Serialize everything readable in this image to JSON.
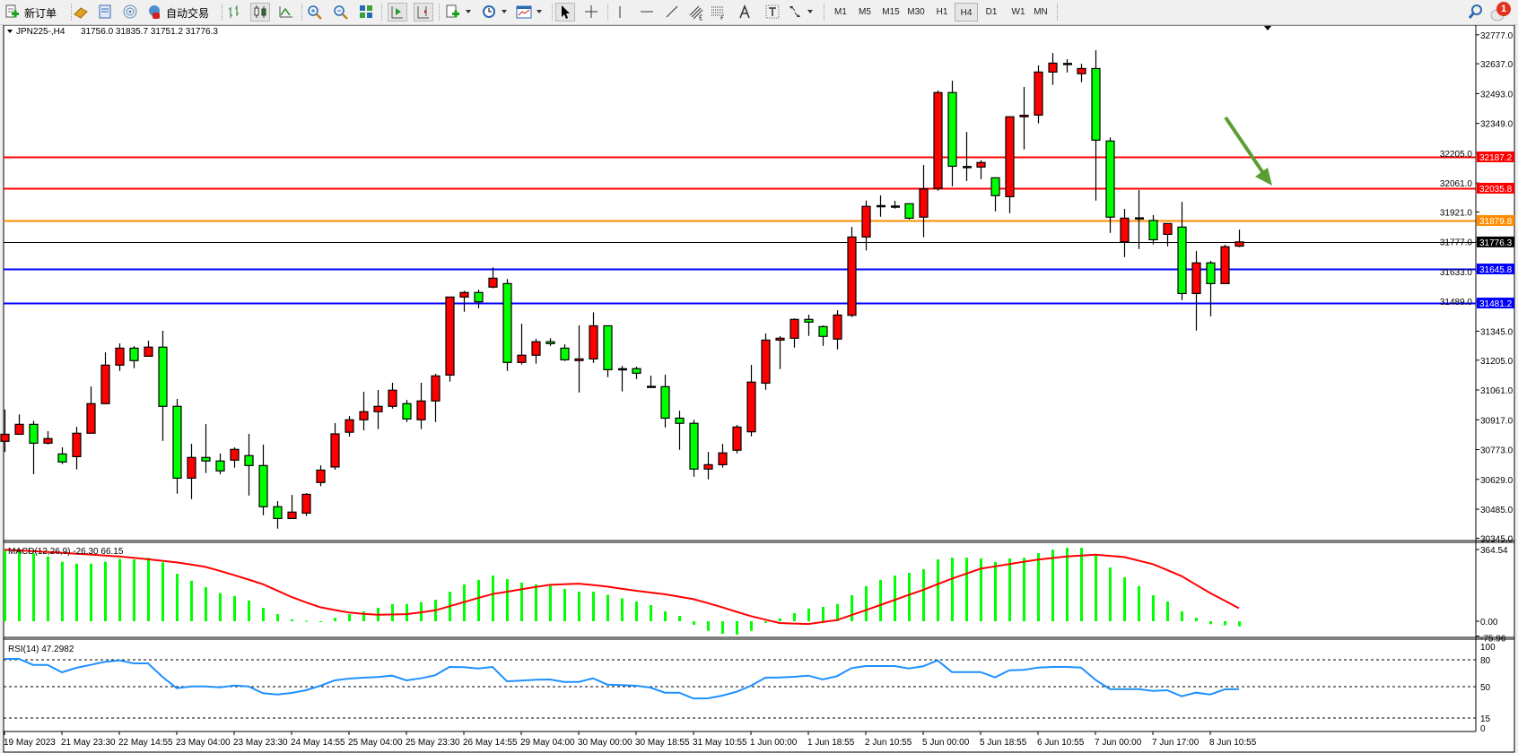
{
  "toolbar": {
    "items": [
      {
        "id": "new-order",
        "icon": "new-order-icon",
        "label": "新订单"
      },
      {
        "id": "market-watch",
        "icon": "gold-bars-icon"
      },
      {
        "id": "terminal",
        "icon": "terminal-icon"
      },
      {
        "id": "signals",
        "icon": "signal-icon"
      },
      {
        "id": "auto-trading",
        "icon": "auto-trading-icon",
        "label": "自动交易"
      },
      {
        "id": "bar-chart",
        "icon": "bar-chart-icon"
      },
      {
        "id": "candlesticks",
        "icon": "candlestick-icon",
        "active": true
      },
      {
        "id": "line-chart",
        "icon": "line-chart-icon"
      },
      {
        "id": "zoom-in",
        "icon": "zoom-in-icon"
      },
      {
        "id": "zoom-out",
        "icon": "zoom-out-icon"
      },
      {
        "id": "tile-windows",
        "icon": "tile-windows-icon"
      },
      {
        "id": "auto-scroll",
        "icon": "auto-scroll-icon",
        "active": true
      },
      {
        "id": "chart-shift",
        "icon": "chart-shift-icon",
        "active": true
      },
      {
        "id": "indicators",
        "icon": "indicators-icon",
        "dropdown": true
      },
      {
        "id": "periods",
        "icon": "clock-icon",
        "dropdown": true
      },
      {
        "id": "templates",
        "icon": "templates-icon",
        "dropdown": true
      },
      {
        "id": "cursor",
        "icon": "cursor-icon",
        "active": true
      },
      {
        "id": "crosshair",
        "icon": "crosshair-icon"
      },
      {
        "id": "vertical-line",
        "icon": "vertical-line-icon"
      },
      {
        "id": "horizontal-line",
        "icon": "horizontal-line-icon"
      },
      {
        "id": "trendline",
        "icon": "trendline-icon"
      },
      {
        "id": "fibo-channel",
        "icon": "fibo-channel-icon"
      },
      {
        "id": "fibonacci",
        "icon": "fibonacci-icon"
      },
      {
        "id": "text",
        "icon": "text-icon"
      },
      {
        "id": "text-label",
        "icon": "text-label-icon"
      },
      {
        "id": "arrows",
        "icon": "arrows-icon",
        "dropdown": true
      }
    ],
    "timeframes": [
      {
        "label": "M1"
      },
      {
        "label": "M5"
      },
      {
        "label": "M15"
      },
      {
        "label": "M30"
      },
      {
        "label": "H1"
      },
      {
        "label": "H4",
        "active": true
      },
      {
        "label": "D1"
      },
      {
        "label": "W1"
      },
      {
        "label": "MN"
      }
    ],
    "search_icon": "search-icon",
    "notifications": {
      "icon": "notification-icon",
      "count": "1"
    }
  },
  "chart": {
    "symbol": "JPN225-,H4",
    "ohlc": "31756.0 31835.7 31751.2 31776.3"
  },
  "chart_data": {
    "type": "candlestick",
    "symbol": "JPN225-",
    "timeframe": "H4",
    "bull_color": "#ff0000",
    "bear_color": "#00ff00",
    "price_axis": {
      "range": [
        30345.0,
        32777.0
      ],
      "ticks": [
        "32777.0",
        "32637.0",
        "32493.0",
        "32349.0",
        "32205.0",
        "32061.0",
        "31921.0",
        "31777.0",
        "31633.0",
        "31489.0",
        "31345.0",
        "31205.0",
        "31061.0",
        "30917.0",
        "30773.0",
        "30629.0",
        "30485.0",
        "30345.0"
      ]
    },
    "levels": [
      {
        "value": 32187.2,
        "label": "32187.2",
        "color": "#ff0000"
      },
      {
        "value": 32035.8,
        "label": "32035.8",
        "color": "#ff0000"
      },
      {
        "value": 31879.8,
        "label": "31879.8",
        "color": "#ff8c00"
      },
      {
        "value": 31776.3,
        "label": "31776.3",
        "color": "#000000",
        "type": "bid"
      },
      {
        "value": 31645.8,
        "label": "31645.8",
        "color": "#0000ff"
      },
      {
        "value": 31481.2,
        "label": "31481.2",
        "color": "#0000ff"
      }
    ],
    "time_labels": [
      "19 May 2023",
      "21 May 23:30",
      "22 May 14:55",
      "23 May 04:00",
      "23 May 23:30",
      "24 May 14:55",
      "25 May 04:00",
      "25 May 23:30",
      "26 May 14:55",
      "29 May 04:00",
      "30 May 00:00",
      "30 May 18:55",
      "31 May 10:55",
      "1 Jun 00:00",
      "1 Jun 18:55",
      "2 Jun 10:55",
      "5 Jun 00:00",
      "5 Jun 18:55",
      "6 Jun 10:55",
      "7 Jun 00:00",
      "7 Jun 17:00",
      "8 Jun 10:55"
    ],
    "candles_ohlc": [
      [
        30813,
        30967,
        30761,
        30847
      ],
      [
        30847,
        30943,
        30847,
        30895
      ],
      [
        30895,
        30912,
        30654,
        30804
      ],
      [
        30804,
        30862,
        30798,
        30826
      ],
      [
        30752,
        30784,
        30703,
        30713
      ],
      [
        30739,
        30883,
        30677,
        30852
      ],
      [
        30852,
        31078,
        30852,
        30995
      ],
      [
        30995,
        31243,
        30995,
        31181
      ],
      [
        31181,
        31286,
        31153,
        31263
      ],
      [
        31263,
        31273,
        31166,
        31203
      ],
      [
        31224,
        31299,
        31224,
        31268
      ],
      [
        31268,
        31347,
        30815,
        30982
      ],
      [
        30982,
        31018,
        30560,
        30635
      ],
      [
        30635,
        30801,
        30534,
        30735
      ],
      [
        30735,
        30896,
        30660,
        30718
      ],
      [
        30718,
        30754,
        30654,
        30670
      ],
      [
        30722,
        30784,
        30686,
        30774
      ],
      [
        30744,
        30849,
        30551,
        30696
      ],
      [
        30696,
        30797,
        30456,
        30497
      ],
      [
        30497,
        30524,
        30391,
        30440
      ],
      [
        30440,
        30554,
        30440,
        30471
      ],
      [
        30466,
        30563,
        30452,
        30557
      ],
      [
        30614,
        30697,
        30596,
        30674
      ],
      [
        30689,
        30901,
        30676,
        30849
      ],
      [
        30857,
        30935,
        30836,
        30917
      ],
      [
        30917,
        31052,
        30866,
        30956
      ],
      [
        30956,
        31061,
        30872,
        30982
      ],
      [
        30982,
        31096,
        30971,
        31060
      ],
      [
        30995,
        31013,
        30906,
        30921
      ],
      [
        30917,
        31096,
        30872,
        31008
      ],
      [
        31008,
        31139,
        30906,
        31129
      ],
      [
        31133,
        31510,
        31101,
        31510
      ],
      [
        31510,
        31540,
        31439,
        31532
      ],
      [
        31532,
        31546,
        31456,
        31487
      ],
      [
        31558,
        31653,
        31552,
        31601
      ],
      [
        31575,
        31597,
        31153,
        31194
      ],
      [
        31194,
        31381,
        31184,
        31229
      ],
      [
        31229,
        31308,
        31188,
        31294
      ],
      [
        31294,
        31311,
        31274,
        31285
      ],
      [
        31263,
        31282,
        31201,
        31207
      ],
      [
        31203,
        31373,
        31049,
        31211
      ],
      [
        31211,
        31436,
        31192,
        31371
      ],
      [
        31371,
        31371,
        31123,
        31159
      ],
      [
        31162,
        31177,
        31054,
        31162
      ],
      [
        31164,
        31174,
        31114,
        31142
      ],
      [
        31077,
        31130,
        31071,
        31077
      ],
      [
        31077,
        31135,
        30880,
        30925
      ],
      [
        30925,
        30961,
        30772,
        30900
      ],
      [
        30900,
        30917,
        30642,
        30679
      ],
      [
        30679,
        30762,
        30629,
        30700
      ],
      [
        30700,
        30801,
        30686,
        30757
      ],
      [
        30770,
        30892,
        30755,
        30882
      ],
      [
        30859,
        31182,
        30837,
        31099
      ],
      [
        31094,
        31334,
        31062,
        31302
      ],
      [
        31302,
        31321,
        31162,
        31311
      ],
      [
        31311,
        31407,
        31266,
        31402
      ],
      [
        31402,
        31425,
        31322,
        31389
      ],
      [
        31367,
        31373,
        31274,
        31320
      ],
      [
        31307,
        31446,
        31257,
        31423
      ],
      [
        31422,
        31849,
        31413,
        31800
      ],
      [
        31800,
        31976,
        31735,
        31948
      ],
      [
        31948,
        32001,
        31898,
        31950
      ],
      [
        31948,
        31975,
        31937,
        31946
      ],
      [
        31961,
        31961,
        31884,
        31891
      ],
      [
        31896,
        32148,
        31799,
        32032
      ],
      [
        32035,
        32508,
        32024,
        32498
      ],
      [
        32498,
        32555,
        32045,
        32142
      ],
      [
        32139,
        32308,
        32071,
        32139
      ],
      [
        32138,
        32171,
        32080,
        32160
      ],
      [
        32086,
        32086,
        31924,
        32000
      ],
      [
        31995,
        32381,
        31915,
        32381
      ],
      [
        32381,
        32525,
        32223,
        32388
      ],
      [
        32389,
        32629,
        32349,
        32597
      ],
      [
        32597,
        32689,
        32535,
        32640
      ],
      [
        32637,
        32659,
        32595,
        32637
      ],
      [
        32589,
        32637,
        32548,
        32614
      ],
      [
        32614,
        32702,
        31976,
        32268
      ],
      [
        32264,
        32281,
        31820,
        31896
      ],
      [
        31777,
        31936,
        31703,
        31891
      ],
      [
        31891,
        32027,
        31742,
        31888
      ],
      [
        31880,
        31906,
        31764,
        31787
      ],
      [
        31813,
        31865,
        31755,
        31865
      ],
      [
        31848,
        31970,
        31495,
        31527
      ],
      [
        31527,
        31732,
        31348,
        31675
      ],
      [
        31675,
        31685,
        31417,
        31575
      ],
      [
        31575,
        31763,
        31575,
        31753
      ],
      [
        31756.0,
        31835.7,
        31751.2,
        31776.3
      ]
    ],
    "macd": {
      "title": "MACD(12,26,9) -26.30 66.15",
      "params": [
        12,
        26,
        9
      ],
      "main_last": -26.3,
      "signal_last": 66.15,
      "axis_labels": [
        "364.54",
        "0.00",
        "-75.96"
      ],
      "range": [
        -75.96,
        364.54
      ],
      "histogram_color": "#00ff00",
      "signal_color": "#ff0000",
      "histogram": [
        363,
        355,
        344,
        329,
        302,
        292,
        292,
        302,
        317,
        314,
        323,
        299,
        241,
        206,
        173,
        143,
        128,
        105,
        68,
        36,
        9,
        2,
        -1,
        17,
        36,
        50,
        68,
        87,
        87,
        97,
        109,
        150,
        187,
        210,
        232,
        214,
        196,
        188,
        181,
        164,
        150,
        150,
        134,
        116,
        100,
        82,
        50,
        27,
        -18,
        -49,
        -64,
        -68,
        -49,
        -9,
        14,
        41,
        64,
        73,
        87,
        132,
        178,
        210,
        232,
        246,
        264,
        314,
        323,
        323,
        319,
        301,
        319,
        323,
        346,
        364,
        373,
        373,
        337,
        273,
        223,
        178,
        132,
        100,
        50,
        18,
        -15,
        -21,
        -26.3
      ],
      "signal": [
        363,
        360,
        356,
        352,
        348,
        343,
        339,
        334,
        329,
        322,
        315,
        307,
        299,
        288,
        276,
        256,
        234,
        212,
        188,
        156,
        123,
        96,
        71,
        57,
        44,
        38,
        33,
        34,
        36,
        45,
        55,
        76,
        97,
        118,
        138,
        150,
        162,
        174,
        185,
        188,
        191,
        184,
        176,
        165,
        155,
        146,
        137,
        125,
        112,
        92,
        71,
        48,
        26,
        8,
        -9,
        -12,
        -14,
        -4,
        6,
        31,
        56,
        82,
        108,
        134,
        159,
        188,
        216,
        242,
        267,
        279,
        290,
        302,
        313,
        321,
        329,
        334,
        338,
        332,
        326,
        308,
        290,
        260,
        229,
        186,
        143,
        105,
        66.15
      ]
    },
    "rsi": {
      "title": "RSI(14) 47.2982",
      "period": 14,
      "last": 47.2982,
      "axis_labels": [
        "100",
        "80",
        "50",
        "15",
        "0"
      ],
      "levels": [
        80,
        50,
        15
      ],
      "range": [
        0,
        100
      ],
      "color": "#1e90ff",
      "values": [
        81,
        81,
        74.3,
        74.3,
        66,
        71,
        74.3,
        77.7,
        79.3,
        76,
        76,
        61,
        48.3,
        50.3,
        50.3,
        49.3,
        51.3,
        50.3,
        42.7,
        41.3,
        43,
        46,
        51,
        57,
        59,
        60,
        60.7,
        62.3,
        57,
        59.3,
        62.7,
        72,
        71.7,
        70.3,
        72,
        56,
        56.7,
        57.7,
        58,
        55.3,
        55.3,
        59.3,
        52.3,
        51.7,
        51,
        49,
        43.3,
        43.3,
        36.7,
        37,
        40,
        44.3,
        51,
        60,
        60.3,
        61,
        62.3,
        58,
        61.7,
        70.7,
        73,
        73,
        73,
        70.3,
        72.7,
        79.3,
        66.3,
        66.3,
        66.3,
        60.3,
        68.3,
        68.7,
        71.3,
        72,
        72,
        71.3,
        57.7,
        47.3,
        47.3,
        47.3,
        45.3,
        46,
        39.3,
        43.3,
        41.3,
        47,
        47.2982
      ]
    },
    "annotation": {
      "type": "arrow",
      "direction": "down-right",
      "color": "#5a9e32"
    }
  }
}
